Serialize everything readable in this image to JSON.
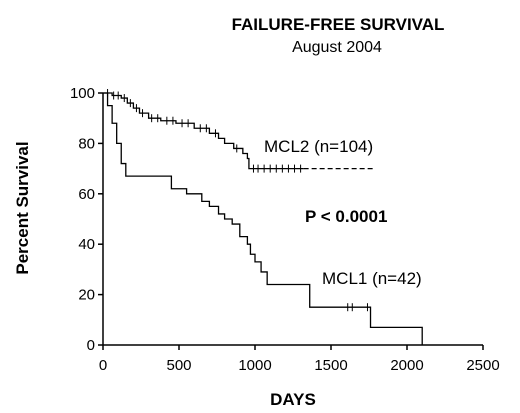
{
  "chart_data": {
    "type": "line",
    "title": "FAILURE-FREE SURVIVAL",
    "subtitle": "August 2004",
    "xlabel": "DAYS",
    "ylabel": "Percent Survival",
    "xlim": [
      0,
      2500
    ],
    "ylim": [
      0,
      100
    ],
    "xticks": [
      "0",
      "500",
      "1000",
      "1500",
      "2000",
      "2500"
    ],
    "yticks": [
      "0",
      "20",
      "40",
      "60",
      "80",
      "100"
    ],
    "annotation": "P < 0.0001",
    "grid": false,
    "series": [
      {
        "name": "MCL2 (n=104)",
        "style": "solid-then-dashed",
        "dashed_from_x": 1320,
        "x": [
          0,
          60,
          120,
          160,
          200,
          240,
          300,
          380,
          480,
          600,
          700,
          760,
          800,
          860,
          920,
          950,
          960,
          1320,
          1780
        ],
        "y": [
          100,
          99,
          98,
          96,
          94,
          92,
          90,
          89,
          88,
          86,
          84,
          82,
          80,
          78,
          76,
          74,
          70,
          70,
          70
        ],
        "censored_x": [
          30,
          70,
          100,
          140,
          180,
          220,
          260,
          320,
          360,
          420,
          460,
          520,
          560,
          640,
          680,
          740,
          880,
          990,
          1020,
          1060,
          1100,
          1140,
          1180,
          1220,
          1260,
          1300
        ]
      },
      {
        "name": "MCL1 (n=42)",
        "style": "solid",
        "x": [
          0,
          30,
          60,
          90,
          120,
          150,
          230,
          450,
          550,
          650,
          700,
          760,
          800,
          850,
          900,
          950,
          970,
          1000,
          1040,
          1080,
          1120,
          1360,
          1760,
          2100,
          2100
        ],
        "y": [
          100,
          95,
          88,
          80,
          72,
          67,
          67,
          62,
          60,
          57,
          55,
          52,
          50,
          48,
          43,
          40,
          36,
          33,
          29,
          24,
          24,
          15,
          7,
          7,
          0
        ],
        "censored_x": [
          1610,
          1640,
          1740
        ]
      }
    ]
  }
}
